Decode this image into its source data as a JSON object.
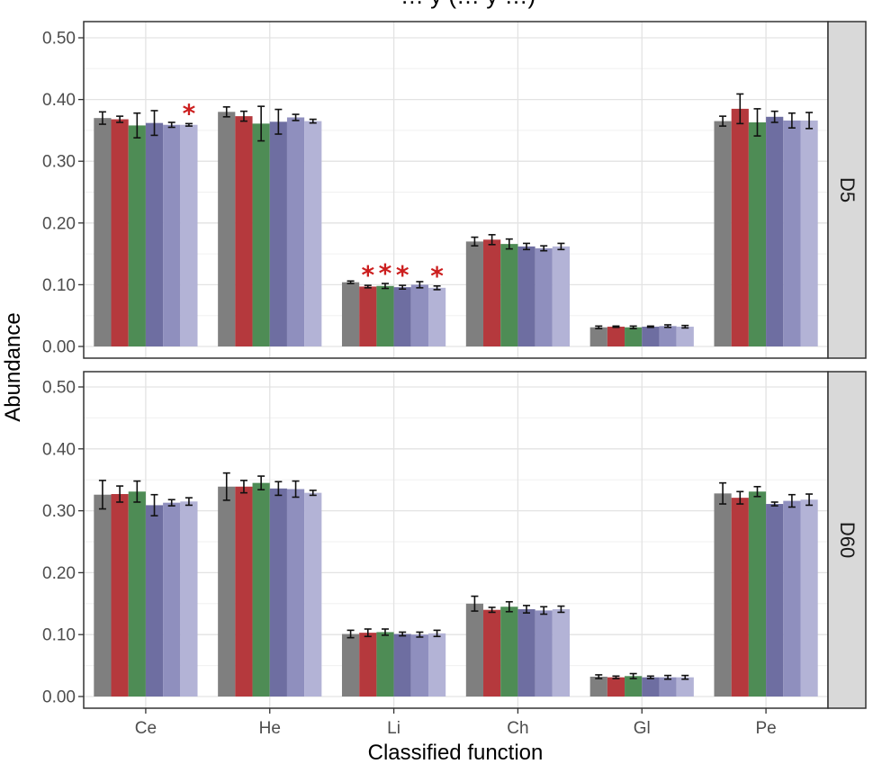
{
  "chart_data": {
    "type": "bar",
    "title": "… y (… y …)",
    "xlabel": "Classified function",
    "ylabel": "Abundance",
    "categories": [
      "Ce",
      "He",
      "Li",
      "Ch",
      "Gl",
      "Pe"
    ],
    "ylim": [
      0,
      0.5
    ],
    "yticks": [
      "0.00",
      "0.10",
      "0.20",
      "0.30",
      "0.40",
      "0.50"
    ],
    "grid": true,
    "series_colors": [
      "#7f7f7f",
      "#b5393d",
      "#4e8c55",
      "#6e6ea1",
      "#8f8fbe",
      "#b3b3d6"
    ],
    "panels": [
      {
        "label": "D5",
        "values": [
          [
            0.37,
            0.368,
            0.358,
            0.362,
            0.359,
            0.359
          ],
          [
            0.38,
            0.373,
            0.361,
            0.364,
            0.371,
            0.365
          ],
          [
            0.104,
            0.097,
            0.098,
            0.096,
            0.1,
            0.095
          ],
          [
            0.17,
            0.173,
            0.166,
            0.162,
            0.159,
            0.162
          ],
          [
            0.031,
            0.032,
            0.031,
            0.032,
            0.033,
            0.032
          ],
          [
            0.365,
            0.385,
            0.363,
            0.372,
            0.366,
            0.366
          ]
        ],
        "errors": [
          [
            0.01,
            0.005,
            0.02,
            0.02,
            0.004,
            0.002
          ],
          [
            0.008,
            0.008,
            0.028,
            0.02,
            0.005,
            0.003
          ],
          [
            0.002,
            0.002,
            0.004,
            0.003,
            0.005,
            0.003
          ],
          [
            0.007,
            0.008,
            0.008,
            0.005,
            0.004,
            0.005
          ],
          [
            0.002,
            0.001,
            0.002,
            0.001,
            0.002,
            0.002
          ],
          [
            0.008,
            0.024,
            0.022,
            0.009,
            0.012,
            0.013
          ]
        ],
        "significance": [
          [
            "",
            "",
            "",
            "",
            "",
            "*"
          ],
          [
            "",
            "",
            "",
            "",
            "",
            ""
          ],
          [
            "",
            "*",
            "*",
            "*",
            "",
            "*"
          ],
          [
            "",
            "",
            "",
            "",
            "",
            ""
          ],
          [
            "",
            "",
            "",
            "",
            "",
            ""
          ],
          [
            "",
            "",
            "",
            "",
            "",
            ""
          ]
        ]
      },
      {
        "label": "D60",
        "values": [
          [
            0.326,
            0.327,
            0.331,
            0.309,
            0.313,
            0.315
          ],
          [
            0.339,
            0.339,
            0.345,
            0.336,
            0.335,
            0.329
          ],
          [
            0.101,
            0.103,
            0.104,
            0.101,
            0.1,
            0.102
          ],
          [
            0.15,
            0.14,
            0.145,
            0.141,
            0.139,
            0.141
          ],
          [
            0.032,
            0.031,
            0.033,
            0.031,
            0.031,
            0.031
          ],
          [
            0.328,
            0.321,
            0.331,
            0.311,
            0.316,
            0.318
          ]
        ],
        "errors": [
          [
            0.023,
            0.013,
            0.017,
            0.017,
            0.005,
            0.006
          ],
          [
            0.022,
            0.01,
            0.011,
            0.011,
            0.013,
            0.004
          ],
          [
            0.006,
            0.006,
            0.005,
            0.003,
            0.004,
            0.005
          ],
          [
            0.012,
            0.004,
            0.008,
            0.006,
            0.006,
            0.005
          ],
          [
            0.003,
            0.002,
            0.004,
            0.002,
            0.003,
            0.003
          ],
          [
            0.017,
            0.01,
            0.008,
            0.003,
            0.01,
            0.009
          ]
        ],
        "significance": [
          [
            "",
            "",
            "",
            "",
            "",
            ""
          ],
          [
            "",
            "",
            "",
            "",
            "",
            ""
          ],
          [
            "",
            "",
            "",
            "",
            "",
            ""
          ],
          [
            "",
            "",
            "",
            "",
            "",
            ""
          ],
          [
            "",
            "",
            "",
            "",
            "",
            ""
          ],
          [
            "",
            "",
            "",
            "",
            "",
            ""
          ]
        ]
      }
    ]
  }
}
